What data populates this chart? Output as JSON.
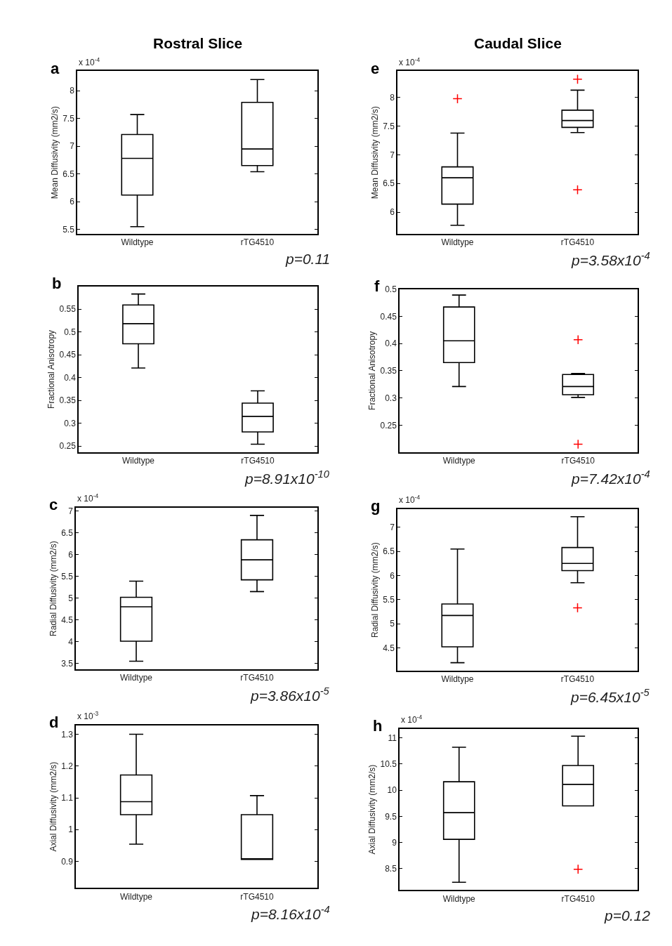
{
  "chart_data": [
    {
      "type": "box",
      "title": "Rostral Slice",
      "ylabel": "Mean Diffusivity (mm2/s)",
      "categories": [
        "Wildtype",
        "rTG4510"
      ],
      "annotations": [
        "a",
        "x 10$^{-4}$",
        "p=0.11"
      ],
      "ylim": [
        5.42,
        8.35
      ],
      "yticks": [
        5.5,
        6,
        6.5,
        7,
        7.5,
        8
      ],
      "series": [
        {
          "color": "#000000",
          "boxes": [
            {
              "low": 5.55,
              "q1": 6.12,
              "median": 6.78,
              "q3": 7.21,
              "high": 7.57
            },
            {
              "low": 6.54,
              "q1": 6.65,
              "median": 6.95,
              "q3": 7.79,
              "high": 8.2
            }
          ]
        }
      ]
    },
    {
      "type": "box",
      "ylabel": "Fractional Anisotropy",
      "categories": [
        "Wildtype",
        "rTG4510"
      ],
      "annotations": [
        "b",
        "p=8.91x10$^{-10}$"
      ],
      "ylim": [
        0.236,
        0.6
      ],
      "yticks": [
        0.25,
        0.3,
        0.35,
        0.4,
        0.45,
        0.5,
        0.55
      ],
      "series": [
        {
          "color": "#000000",
          "boxes": [
            {
              "low": 0.421,
              "q1": 0.474,
              "median": 0.518,
              "q3": 0.559,
              "high": 0.583
            },
            {
              "low": 0.254,
              "q1": 0.281,
              "median": 0.315,
              "q3": 0.344,
              "high": 0.371
            }
          ]
        }
      ]
    },
    {
      "type": "box",
      "ylabel": "Radial Diffusivity (mm2/s)",
      "categories": [
        "Wildtype",
        "rTG4510"
      ],
      "annotations": [
        "c",
        "x 10$^{-4}$",
        "p=3.86x10$^{-5}$"
      ],
      "ylim": [
        3.36,
        7.08
      ],
      "yticks": [
        3.5,
        4,
        4.5,
        5,
        5.5,
        6,
        6.5,
        7
      ],
      "series": [
        {
          "color": "#000000",
          "boxes": [
            {
              "low": 3.55,
              "q1": 4.01,
              "median": 4.8,
              "q3": 5.02,
              "high": 5.39
            },
            {
              "low": 5.15,
              "q1": 5.42,
              "median": 5.88,
              "q3": 6.34,
              "high": 6.9
            }
          ]
        }
      ]
    },
    {
      "type": "box",
      "ylabel": "Axial Diffusivity (mm2/s)",
      "categories": [
        "Wildtype",
        "rTG4510"
      ],
      "annotations": [
        "d",
        "x 10$^{-3}$",
        "p=8.16x10$^{-4}$"
      ],
      "ylim": [
        0.816,
        1.328
      ],
      "yticks": [
        0.9,
        1,
        1.1,
        1.2,
        1.3
      ],
      "series": [
        {
          "color": "#000000",
          "boxes": [
            {
              "low": 0.954,
              "q1": 1.047,
              "median": 1.088,
              "q3": 1.172,
              "high": 1.3
            },
            {
              "low": 0.906,
              "q1": 0.906,
              "median": 0.908,
              "q3": 1.047,
              "high": 1.107
            }
          ]
        }
      ]
    },
    {
      "type": "box",
      "title": "Caudal Slice",
      "ylabel": "Mean Diffusivity (mm2/s)",
      "categories": [
        "Wildtype",
        "rTG4510"
      ],
      "annotations": [
        "e",
        "x 10$^{-4}$",
        "p=3.58x10$^{-4}$"
      ],
      "ylim": [
        5.62,
        8.46
      ],
      "yticks": [
        6,
        6.5,
        7,
        7.5,
        8
      ],
      "series": [
        {
          "color": "#000000",
          "boxes": [
            {
              "low": 5.77,
              "q1": 6.14,
              "median": 6.6,
              "q3": 6.79,
              "high": 7.38,
              "outliers": [
                7.98
              ]
            },
            {
              "low": 7.39,
              "q1": 7.48,
              "median": 7.6,
              "q3": 7.78,
              "high": 8.13,
              "outliers": [
                8.32,
                6.39
              ]
            }
          ]
        }
      ]
    },
    {
      "type": "box",
      "ylabel": "Fractional Anisotropy",
      "categories": [
        "Wildtype",
        "rTG4510"
      ],
      "annotations": [
        "f",
        "p=7.42x10$^{-4}$"
      ],
      "ylim": [
        0.2,
        0.5
      ],
      "yticks": [
        0.25,
        0.3,
        0.35,
        0.4,
        0.45,
        0.5
      ],
      "series": [
        {
          "color": "#000000",
          "boxes": [
            {
              "low": 0.321,
              "q1": 0.365,
              "median": 0.405,
              "q3": 0.467,
              "high": 0.489
            },
            {
              "low": 0.301,
              "q1": 0.306,
              "median": 0.321,
              "q3": 0.343,
              "high": 0.345,
              "outliers": [
                0.407,
                0.215
              ]
            }
          ]
        }
      ]
    },
    {
      "type": "box",
      "ylabel": "Radial Diffusivity (mm2/s)",
      "categories": [
        "Wildtype",
        "rTG4510"
      ],
      "annotations": [
        "g",
        "x 10$^{-4}$",
        "p=6.45x10$^{-5}$"
      ],
      "ylim": [
        4.02,
        7.38
      ],
      "yticks": [
        4.5,
        5,
        5.5,
        6,
        6.5,
        7
      ],
      "series": [
        {
          "color": "#000000",
          "boxes": [
            {
              "low": 4.19,
              "q1": 4.52,
              "median": 5.17,
              "q3": 5.41,
              "high": 6.55
            },
            {
              "low": 5.85,
              "q1": 6.1,
              "median": 6.25,
              "q3": 6.58,
              "high": 7.22,
              "outliers": [
                5.33
              ]
            }
          ]
        }
      ]
    },
    {
      "type": "box",
      "ylabel": "Axial Diffusivity (mm2/s)",
      "categories": [
        "Wildtype",
        "rTG4510"
      ],
      "annotations": [
        "h",
        "x 10$^{-4}$",
        "p=0.12"
      ],
      "ylim": [
        8.09,
        11.17
      ],
      "yticks": [
        8.5,
        9,
        9.5,
        10,
        10.5,
        11
      ],
      "series": [
        {
          "color": "#000000",
          "boxes": [
            {
              "low": 8.24,
              "q1": 9.06,
              "median": 9.57,
              "q3": 10.16,
              "high": 10.82
            },
            {
              "low": 9.7,
              "q1": 9.7,
              "median": 10.11,
              "q3": 10.47,
              "high": 11.03,
              "outliers": [
                8.49
              ]
            }
          ]
        }
      ]
    }
  ]
}
